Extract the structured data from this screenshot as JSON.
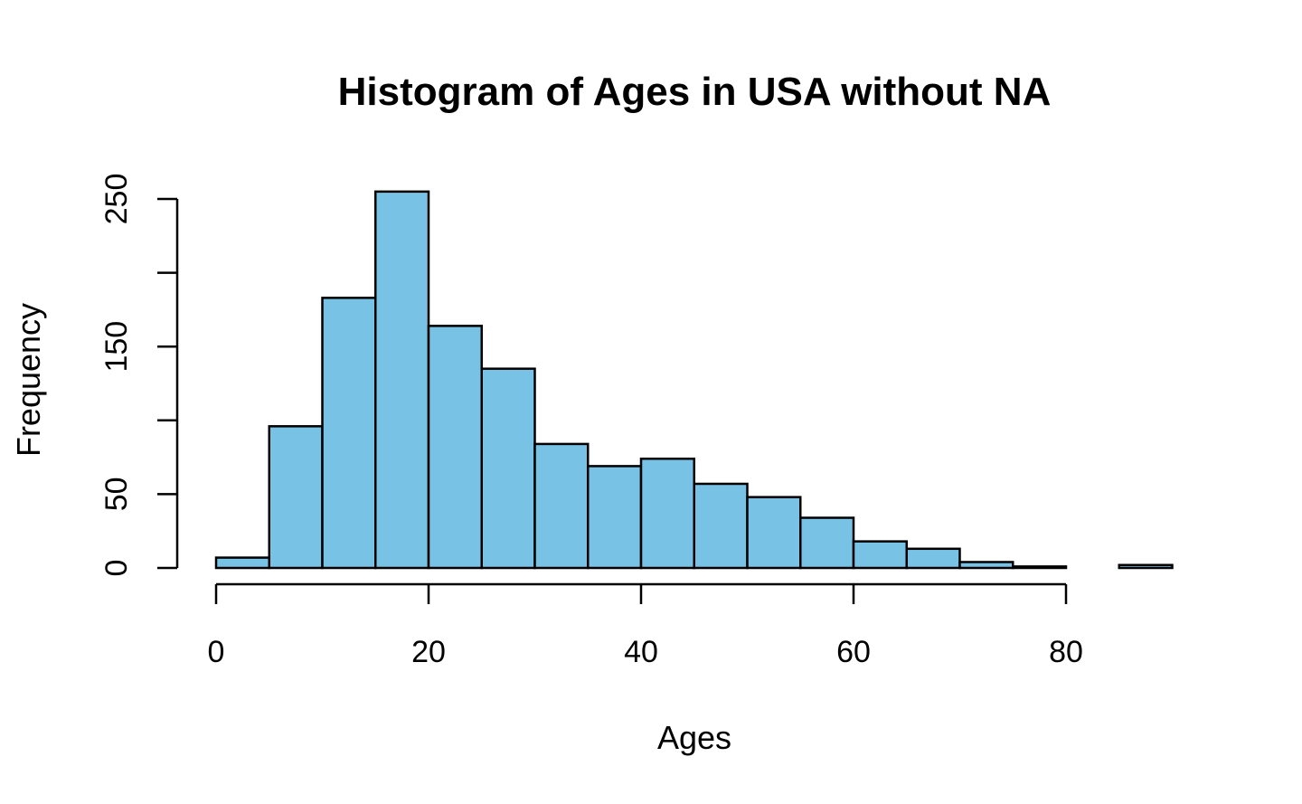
{
  "chart_data": {
    "type": "bar",
    "title": "Histogram of Ages in USA without NA",
    "xlabel": "Ages",
    "ylabel": "Frequency",
    "bar_color": "#78C2E6",
    "edge_color": "#000000",
    "bin_width": 5,
    "x": [
      0,
      5,
      10,
      15,
      20,
      25,
      30,
      35,
      40,
      45,
      50,
      55,
      60,
      65,
      70,
      75,
      80,
      85
    ],
    "values": [
      7,
      96,
      183,
      255,
      164,
      135,
      84,
      69,
      74,
      57,
      48,
      34,
      18,
      13,
      4,
      1,
      0,
      2
    ],
    "xlim": [
      0,
      90
    ],
    "ylim": [
      0,
      250
    ],
    "x_ticks": [
      0,
      20,
      40,
      60,
      80
    ],
    "x_tick_labels": [
      "0",
      "20",
      "40",
      "60",
      "80"
    ],
    "y_ticks": [
      0,
      50,
      100,
      150,
      200,
      250
    ],
    "y_tick_labels": [
      "0",
      "50",
      "",
      "150",
      "",
      "250"
    ],
    "grid": false,
    "legend": "none"
  }
}
